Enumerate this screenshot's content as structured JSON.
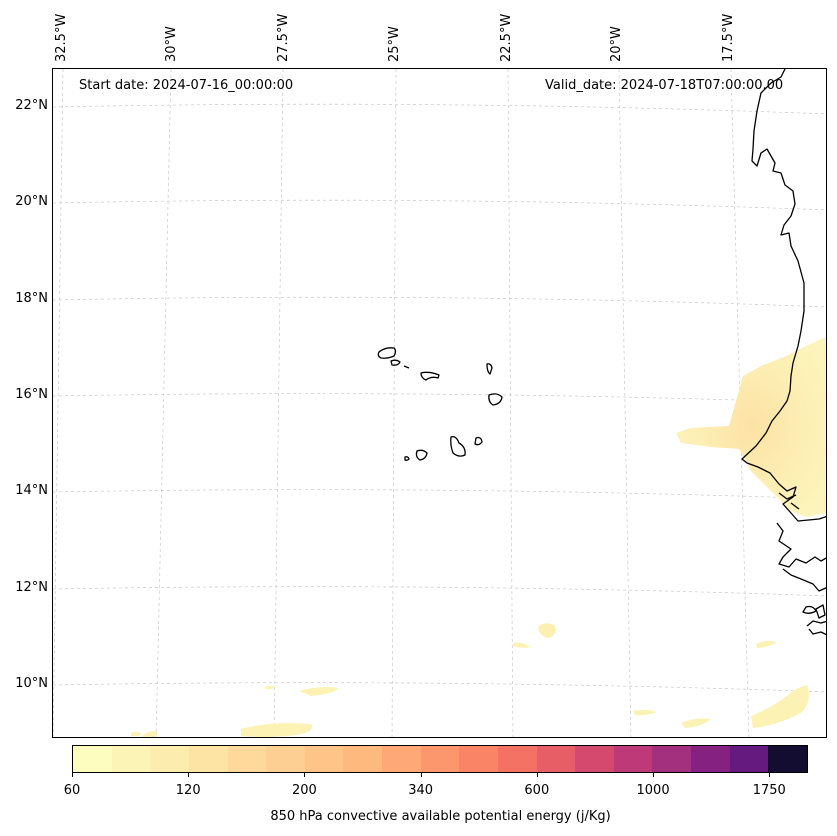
{
  "header": {
    "start_date": "Start date: 2024-07-16_00:00:00",
    "valid_date": "Valid_date: 2024-07-18T07:00:00.00"
  },
  "longitude_labels": [
    "32.5°W",
    "30°W",
    "27.5°W",
    "25°W",
    "22.5°W",
    "20°W",
    "17.5°W"
  ],
  "latitude_labels": [
    "22°N",
    "20°N",
    "18°N",
    "16°N",
    "14°N",
    "12°N",
    "10°N"
  ],
  "colorbar": {
    "label": "850 hPa convective available potential energy (j/Kg)",
    "tick_labels": [
      "60",
      "120",
      "200",
      "340",
      "600",
      "1000",
      "1750"
    ],
    "colors": [
      "#fcfdbf",
      "#fcf4b6",
      "#fcecad",
      "#fde3a4",
      "#fed99b",
      "#fecf92",
      "#fec488",
      "#feb97f",
      "#fda876",
      "#fc976d",
      "#f98566",
      "#f47263",
      "#e85e66",
      "#d6496e",
      "#bd3977",
      "#a3307e",
      "#852180",
      "#651a80",
      "#120d31"
    ]
  },
  "map": {
    "grid": true,
    "coastline_color": "#000000",
    "field_color_low": "#fcf2b4",
    "field_color_mid": "#fde6a6"
  }
}
